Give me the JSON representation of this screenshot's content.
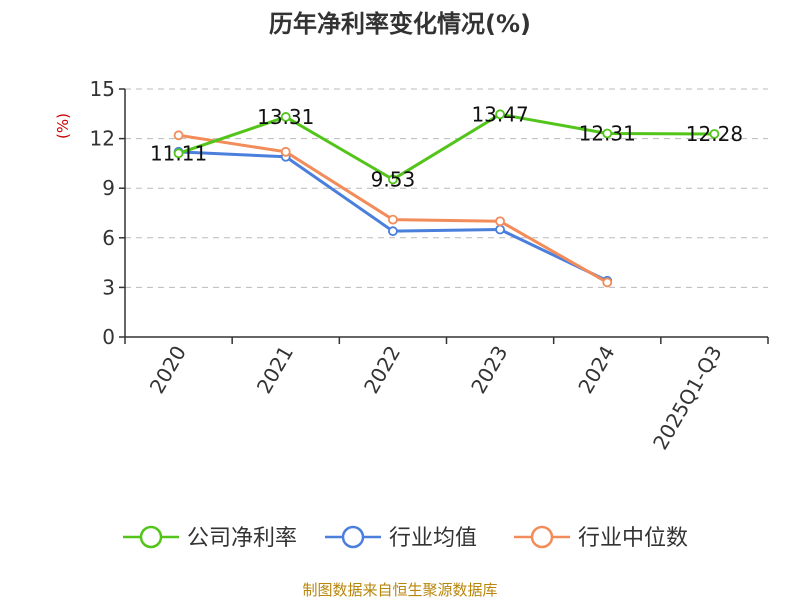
{
  "chart_data": {
    "type": "line",
    "title": "历年净利率变化情况(%)",
    "ylabel": "(%)",
    "xlabel": "",
    "categories": [
      "2020",
      "2021",
      "2022",
      "2023",
      "2024",
      "2025Q1-Q3"
    ],
    "yticks": [
      "0",
      "3",
      "6",
      "9",
      "12",
      "15"
    ],
    "ylim": [
      0,
      15
    ],
    "grid": true,
    "legend_position": "bottom",
    "series": [
      {
        "name": "公司净利率",
        "color": "#52c41a",
        "values": [
          11.11,
          13.31,
          9.53,
          13.47,
          12.31,
          12.28
        ],
        "labels": [
          "11.11",
          "13.31",
          "9.53",
          "13.47",
          "12.31",
          "12.28"
        ]
      },
      {
        "name": "行业均值",
        "color": "#4a7fdc",
        "values": [
          11.2,
          10.9,
          6.4,
          6.5,
          3.4,
          null
        ]
      },
      {
        "name": "行业中位数",
        "color": "#f28c5a",
        "values": [
          12.2,
          11.2,
          7.1,
          7.0,
          3.3,
          null
        ]
      }
    ],
    "source": "制图数据来自恒生聚源数据库"
  }
}
